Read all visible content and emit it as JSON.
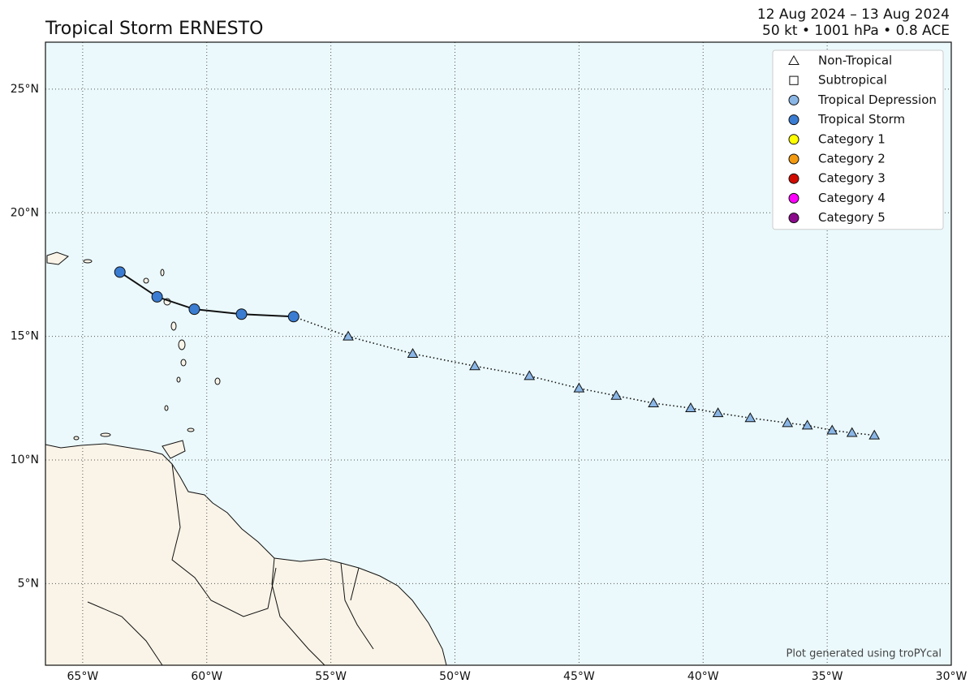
{
  "map": {
    "title": "Tropical Storm ERNESTO",
    "date_range": "12 Aug 2024 – 13 Aug 2024",
    "stats": "50 kt • 1001 hPa • 0.8 ACE",
    "credit": "Plot generated using troPYcal",
    "xlim": [
      -66.5,
      -30
    ],
    "ylim": [
      1.7,
      26.9
    ],
    "xticks": [
      {
        "value": -65,
        "label": "65°W"
      },
      {
        "value": -60,
        "label": "60°W"
      },
      {
        "value": -55,
        "label": "55°W"
      },
      {
        "value": -50,
        "label": "50°W"
      },
      {
        "value": -45,
        "label": "45°W"
      },
      {
        "value": -40,
        "label": "40°W"
      },
      {
        "value": -35,
        "label": "35°W"
      },
      {
        "value": -30,
        "label": "30°W"
      }
    ],
    "yticks": [
      {
        "value": 5,
        "label": "5°N"
      },
      {
        "value": 10,
        "label": "10°N"
      },
      {
        "value": 15,
        "label": "15°N"
      },
      {
        "value": 20,
        "label": "20°N"
      },
      {
        "value": 25,
        "label": "25°N"
      }
    ],
    "grid": true,
    "legend": {
      "corner": "upper-right",
      "entries": [
        {
          "label": "Non-Tropical",
          "marker": "triangle",
          "color": "#ffffff"
        },
        {
          "label": "Subtropical",
          "marker": "square",
          "color": "#ffffff"
        },
        {
          "label": "Tropical Depression",
          "marker": "circle",
          "color": "#8ab6e6"
        },
        {
          "label": "Tropical Storm",
          "marker": "circle",
          "color": "#3a7cd2"
        },
        {
          "label": "Category 1",
          "marker": "circle",
          "color": "#ffff00"
        },
        {
          "label": "Category 2",
          "marker": "circle",
          "color": "#f39a10"
        },
        {
          "label": "Category 3",
          "marker": "circle",
          "color": "#d10a00"
        },
        {
          "label": "Category 4",
          "marker": "circle",
          "color": "#ff00ff"
        },
        {
          "label": "Category 5",
          "marker": "circle",
          "color": "#8b0a8b"
        }
      ]
    },
    "track": {
      "lon": [
        -63.5,
        -62.0,
        -60.5,
        -58.6,
        -56.5,
        -54.3,
        -51.7,
        -49.2,
        -47.0,
        -45.0,
        -43.5,
        -42.0,
        -40.5,
        -39.4,
        -38.1,
        -36.6,
        -35.8,
        -34.8,
        -34.0,
        -33.1
      ],
      "lat": [
        17.6,
        16.6,
        16.1,
        15.9,
        15.8,
        15.0,
        14.3,
        13.8,
        13.4,
        12.9,
        12.6,
        12.3,
        12.1,
        11.9,
        11.7,
        11.5,
        11.4,
        11.2,
        11.1,
        11.0
      ],
      "marker": [
        "circle",
        "circle",
        "circle",
        "circle",
        "circle",
        "triangle",
        "triangle",
        "triangle",
        "triangle",
        "triangle",
        "triangle",
        "triangle",
        "triangle",
        "triangle",
        "triangle",
        "triangle",
        "triangle",
        "triangle",
        "triangle",
        "triangle"
      ],
      "color": [
        "#3a7cd2",
        "#3a7cd2",
        "#3a7cd2",
        "#3a7cd2",
        "#3a7cd2",
        "#8ab6e6",
        "#8ab6e6",
        "#8ab6e6",
        "#8ab6e6",
        "#8ab6e6",
        "#8ab6e6",
        "#8ab6e6",
        "#8ab6e6",
        "#8ab6e6",
        "#8ab6e6",
        "#8ab6e6",
        "#8ab6e6",
        "#8ab6e6",
        "#8ab6e6",
        "#8ab6e6"
      ]
    }
  }
}
